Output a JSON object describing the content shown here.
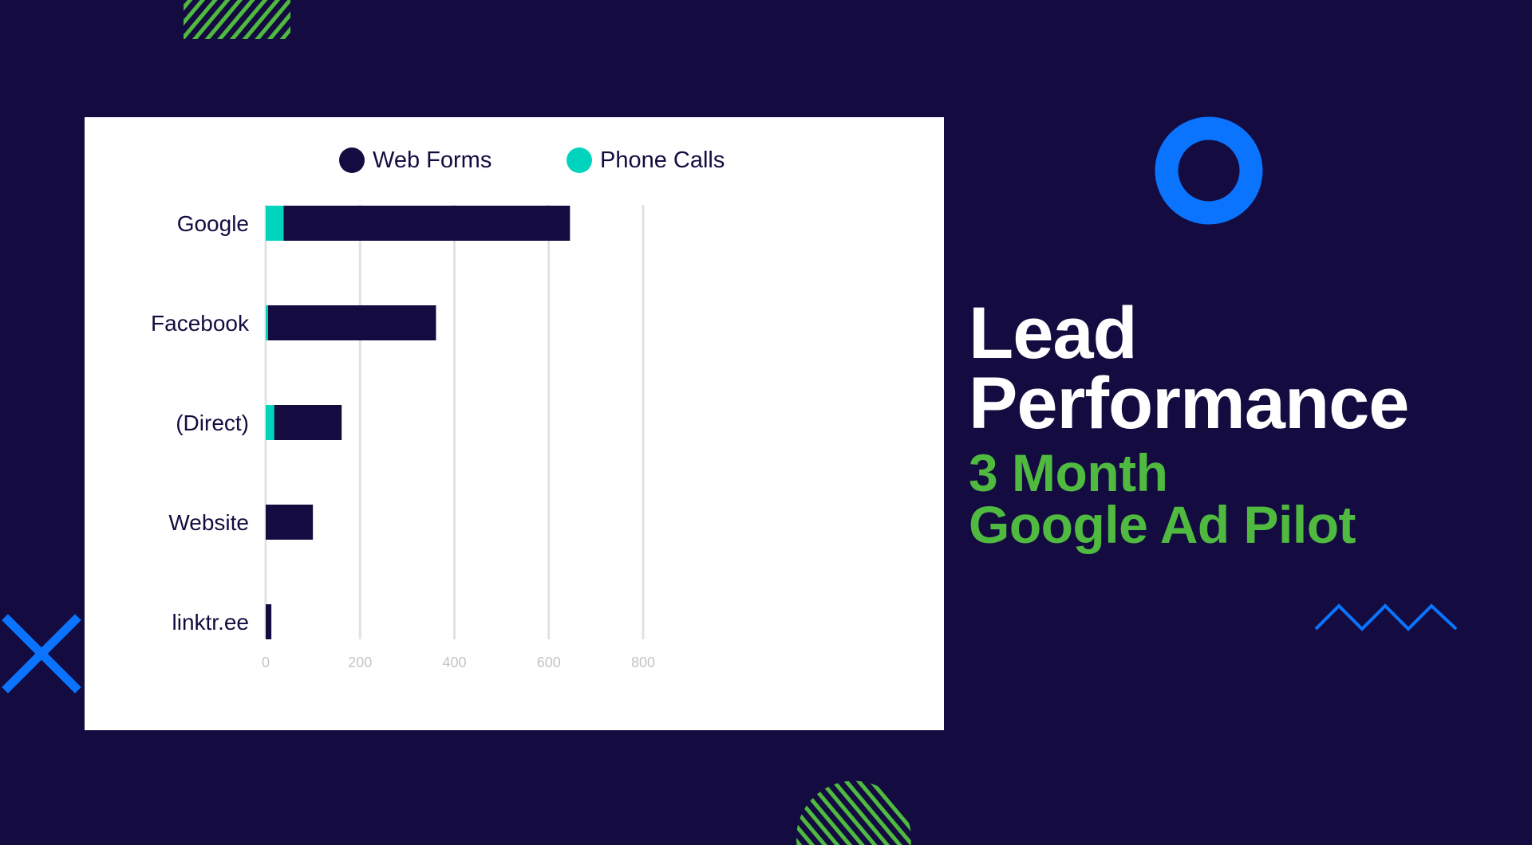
{
  "chart_data": {
    "type": "bar",
    "orientation": "horizontal",
    "stacked": true,
    "categories": [
      "Google",
      "Facebook",
      "(Direct)",
      "Website",
      "linktr.ee"
    ],
    "series": [
      {
        "name": "Phone Calls",
        "color": "#00d4bc",
        "values": [
          38,
          5,
          18,
          0,
          0
        ]
      },
      {
        "name": "Web Forms",
        "color": "#140c40",
        "values": [
          607,
          356,
          143,
          100,
          12
        ]
      }
    ],
    "legend": {
      "items": [
        "Web Forms",
        "Phone Calls"
      ],
      "colors": [
        "#140c40",
        "#00d4bc"
      ],
      "placement": "top"
    },
    "xlim": [
      0,
      800
    ],
    "xticks": [
      "0",
      "200",
      "400",
      "600",
      "800"
    ],
    "grid": true,
    "title": "",
    "xlabel": "",
    "ylabel": ""
  },
  "heading": {
    "line1": "Lead",
    "line2": "Performance",
    "sub1": "3 Month",
    "sub2": "Google Ad Pilot"
  },
  "colors": {
    "background": "#140c40",
    "accent_green": "#4fba3f",
    "accent_blue": "#0a74ff",
    "teal": "#00d4bc"
  }
}
